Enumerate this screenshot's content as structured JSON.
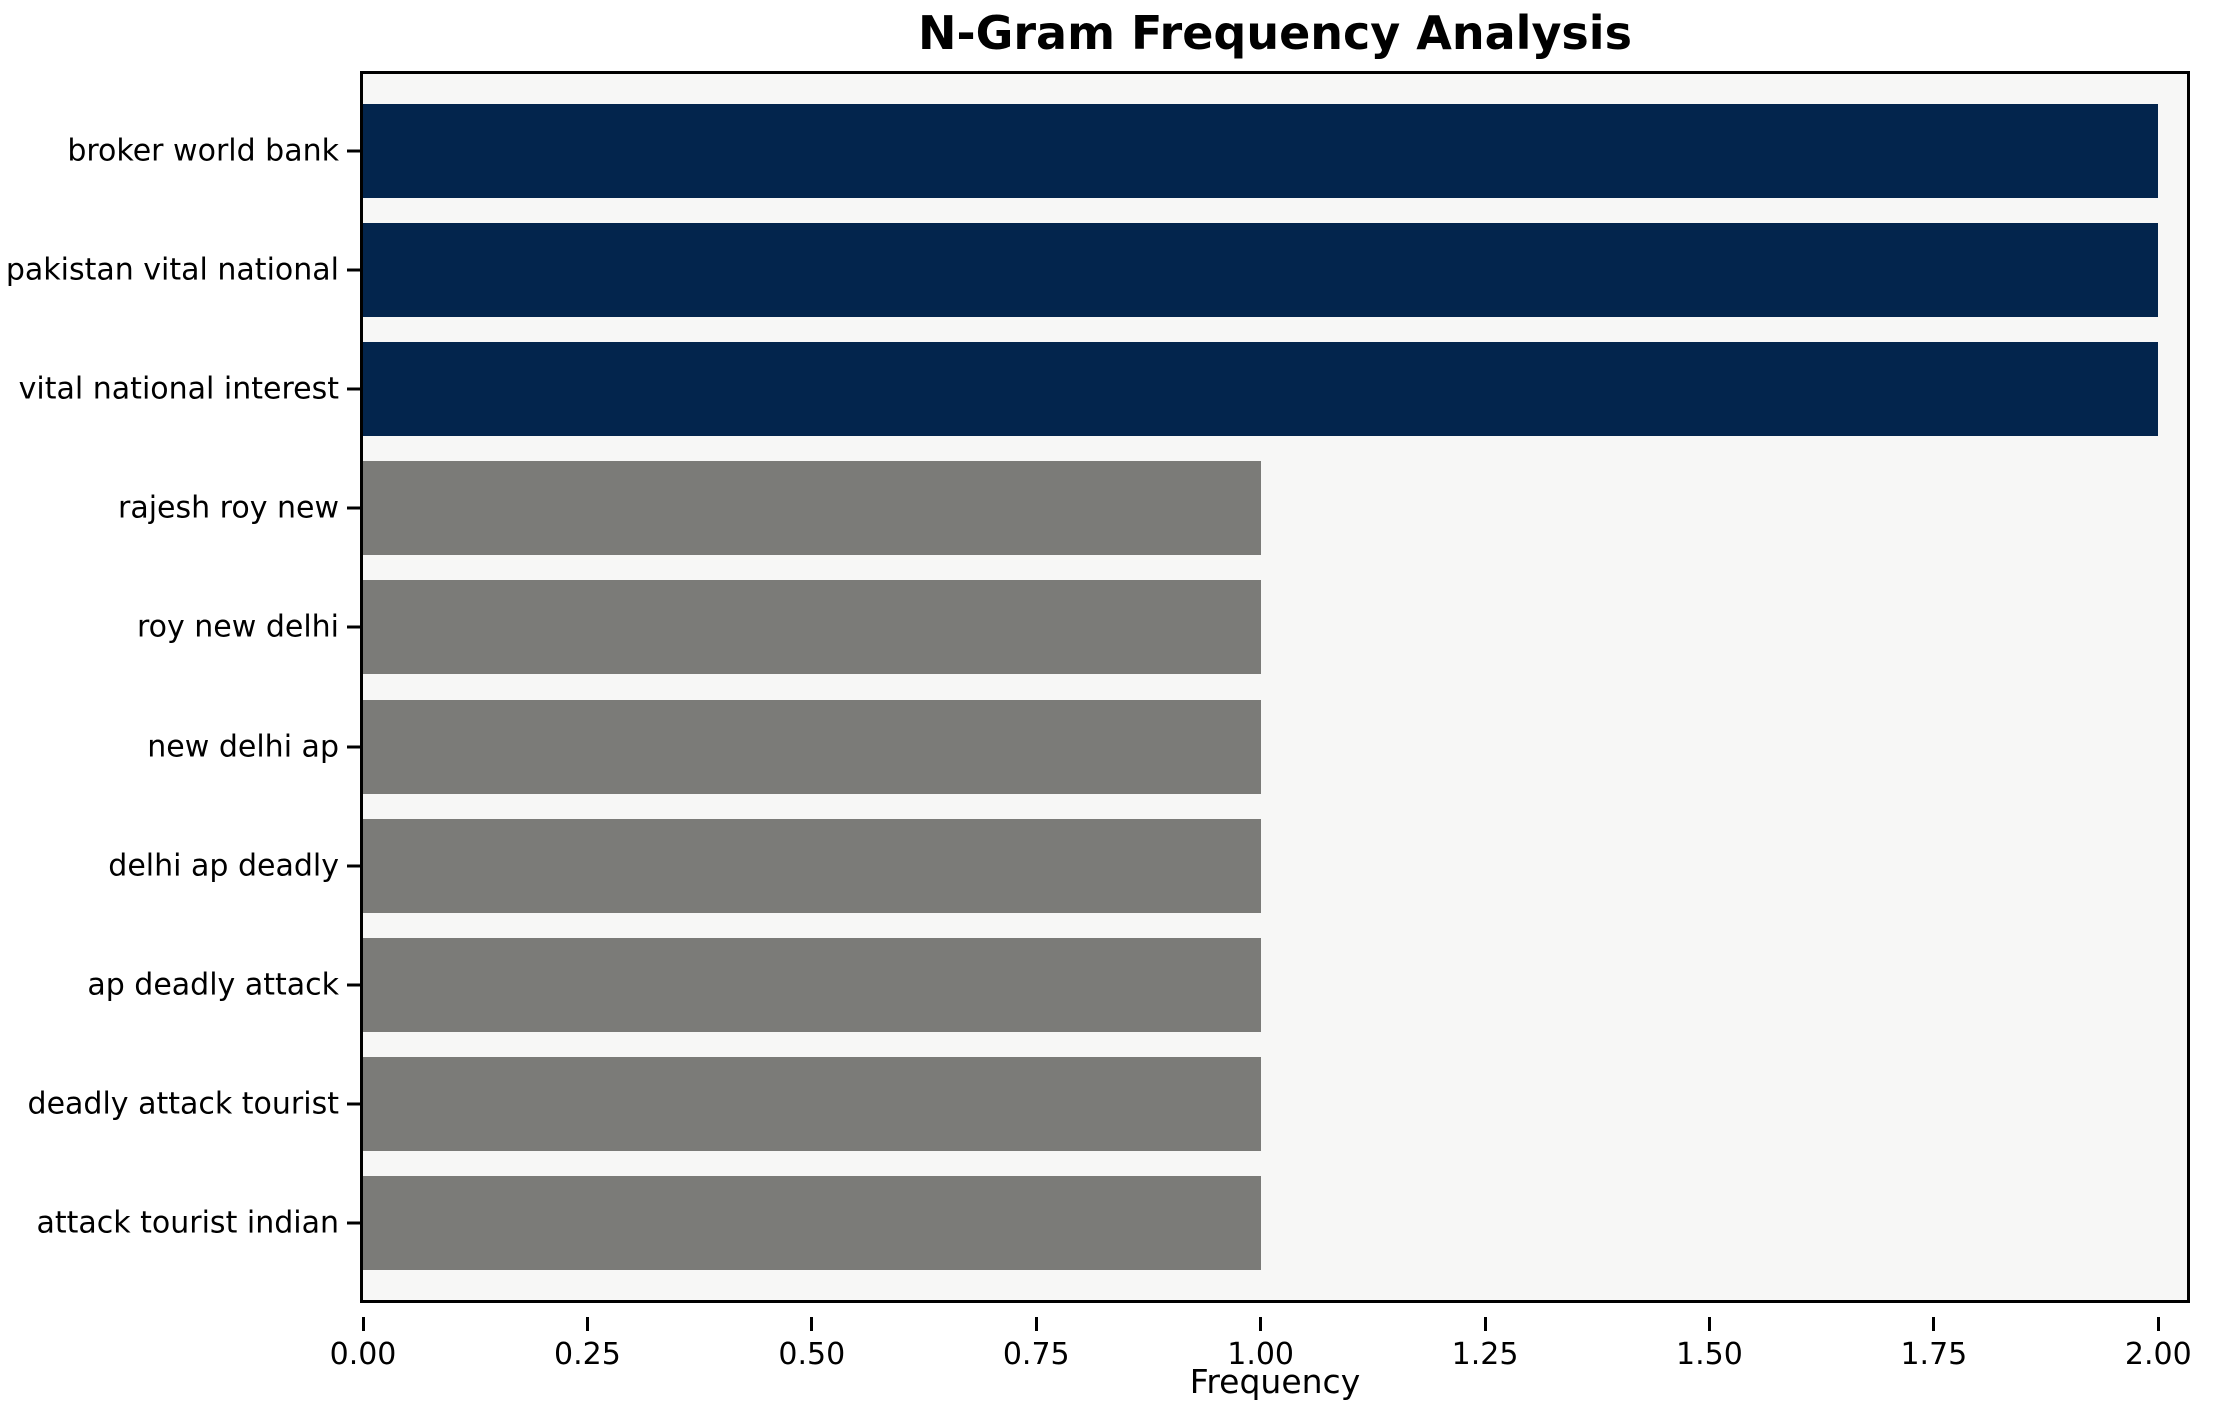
{
  "chart_data": {
    "type": "bar",
    "orientation": "horizontal",
    "title": "N-Gram Frequency Analysis",
    "xlabel": "Frequency",
    "ylabel": "",
    "categories": [
      "broker world bank",
      "pakistan vital national",
      "vital national interest",
      "rajesh roy new",
      "roy new delhi",
      "new delhi ap",
      "delhi ap deadly",
      "ap deadly attack",
      "deadly attack tourist",
      "attack tourist indian"
    ],
    "values": [
      2,
      2,
      2,
      1,
      1,
      1,
      1,
      1,
      1,
      1
    ],
    "bar_colors": [
      "#03254d",
      "#03254d",
      "#03254d",
      "#7b7b78",
      "#7b7b78",
      "#7b7b78",
      "#7b7b78",
      "#7b7b78",
      "#7b7b78",
      "#7b7b78"
    ],
    "x_ticks": [
      {
        "value": 0.0,
        "label": "0.00"
      },
      {
        "value": 0.25,
        "label": "0.25"
      },
      {
        "value": 0.5,
        "label": "0.50"
      },
      {
        "value": 0.75,
        "label": "0.75"
      },
      {
        "value": 1.0,
        "label": "1.00"
      },
      {
        "value": 1.25,
        "label": "1.25"
      },
      {
        "value": 1.5,
        "label": "1.50"
      },
      {
        "value": 1.75,
        "label": "1.75"
      },
      {
        "value": 2.0,
        "label": "2.00"
      }
    ],
    "xlim": [
      0,
      2.032
    ],
    "grid": false,
    "legend": null,
    "colors": {
      "highlight_bar": "#03254d",
      "default_bar": "#7b7b78",
      "plot_background": "#f7f7f6",
      "figure_background": "#ffffff",
      "spine": "#000000",
      "text": "#000000"
    }
  }
}
